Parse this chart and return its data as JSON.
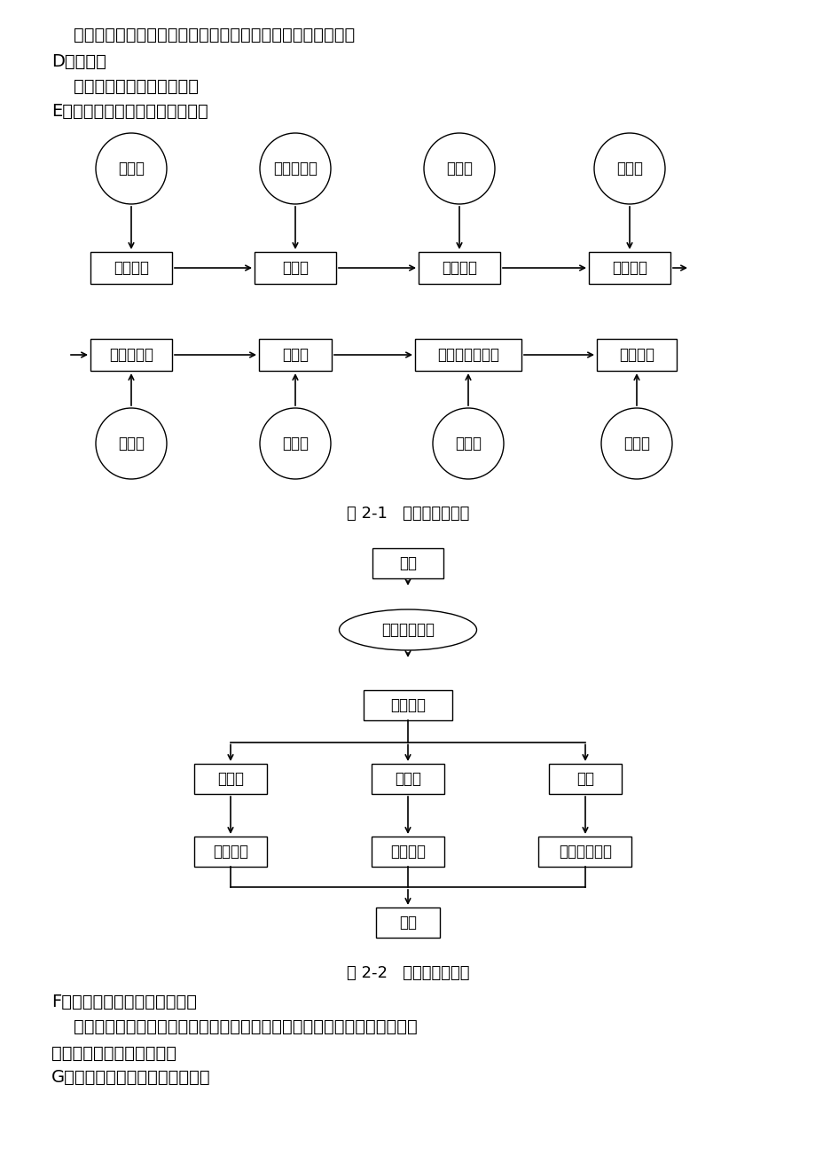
{
  "bg_color": "#ffffff",
  "text_color": "#000000",
  "font_size_body": 14,
  "font_size_label": 13,
  "font_size_caption": 13,
  "line1": "    会员基本信息清单、会员购物详细清单、会员积分详细清单。",
  "line2": "D、输入：",
  "line3": "    会员基本信息、初始积分。",
  "line4": "E、基本的数据流程和处理流程：",
  "caption1": "图 2-1   系统数据流程图",
  "caption2": "图 2-2   系统功能实现图",
  "line_f": "F、在安全与保密方面的要求：",
  "line_f2": "    管理员有读写权限，经营者有查看权限，会员有查看自己信息的权利，其他",
  "line_f3": "人员未经允许无任何权限。",
  "line_g": "G、同本系统相连接的其他系统：",
  "row1_cols": [
    148,
    333,
    518,
    710
  ],
  "row1_circle_labels": [
    "消费者",
    "器械管理部",
    "导购员",
    "测重部"
  ],
  "row1_box_labels": [
    "进入超市",
    "购物车",
    "购物专区",
    "测重专区"
  ],
  "row2_cols": [
    148,
    333,
    528,
    718
  ],
  "row2_box_labels": [
    "出示会员卡",
    "收銀台",
    "更新会员卡积分",
    "离开超市"
  ],
  "row2_circle_labels": [
    "消费者",
    "结账部",
    "收銀员",
    "消费者"
  ]
}
